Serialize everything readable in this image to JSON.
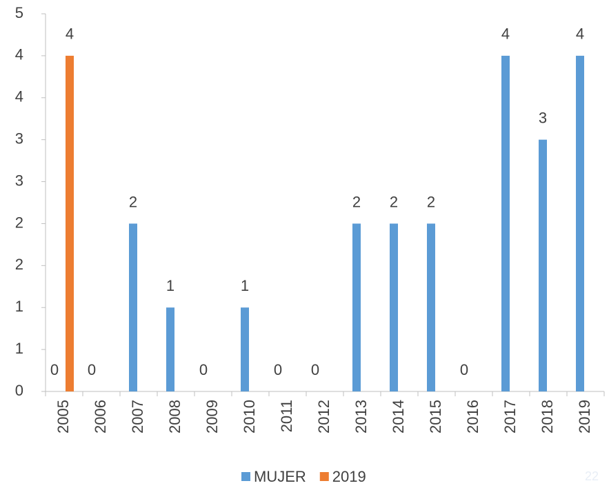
{
  "chart_data": {
    "type": "bar",
    "categories": [
      "2005",
      "2006",
      "2007",
      "2008",
      "2009",
      "2010",
      "2011",
      "2012",
      "2013",
      "2014",
      "2015",
      "2016",
      "2017",
      "2018",
      "2019"
    ],
    "series": [
      {
        "name": "MUJER",
        "color": "#5b9bd5",
        "values": [
          0,
          0,
          2,
          1,
          0,
          1,
          0,
          0,
          2,
          2,
          2,
          0,
          4,
          3,
          4
        ]
      },
      {
        "name": "2019",
        "color": "#ed7d31",
        "values": [
          4,
          null,
          null,
          null,
          null,
          null,
          null,
          null,
          null,
          null,
          null,
          null,
          null,
          null,
          null
        ]
      }
    ],
    "ylim": [
      0,
      4.5
    ],
    "yticks": [
      0,
      {
        "value": 0.5,
        "label": "1"
      },
      {
        "value": 1,
        "label": "1"
      },
      {
        "value": 1.5,
        "label": "2"
      },
      {
        "value": 2,
        "label": "2"
      },
      {
        "value": 2.5,
        "label": "3"
      },
      {
        "value": 3,
        "label": "3"
      },
      {
        "value": 3.5,
        "label": "4"
      },
      {
        "value": 4,
        "label": "4"
      },
      {
        "value": 4.5,
        "label": "5"
      }
    ],
    "grid": false,
    "legend": "bottom",
    "data_labels": true,
    "page_number": "22"
  }
}
